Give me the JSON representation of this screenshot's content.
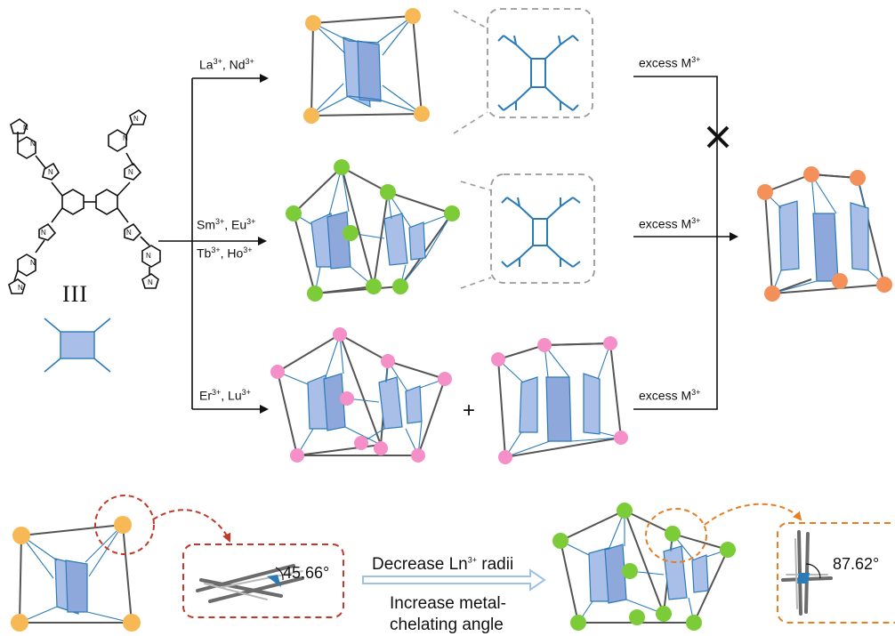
{
  "ligand": {
    "label": "III"
  },
  "routes": {
    "top": {
      "ion1": "La",
      "ion2": "Nd",
      "charge": "3+"
    },
    "middle": {
      "ion1": "Sm",
      "ion2": "Eu",
      "ion3": "Tb",
      "ion4": "Ho",
      "charge": "3+"
    },
    "bottom": {
      "ion1": "Er",
      "ion2": "Lu",
      "charge": "3+"
    }
  },
  "excess": {
    "text": "excess M",
    "charge": "3+"
  },
  "plus": "+",
  "angles": {
    "left": "45.66°",
    "right": "87.62°"
  },
  "trend": {
    "line1_pre": "Decrease Ln",
    "line1_charge": "3+",
    "line1_post": " radii",
    "line2": "Increase metal-",
    "line3": "chelating angle"
  },
  "colors": {
    "la_node": "#f7b955",
    "sm_node": "#7ccc3a",
    "er_node": "#f48fc8",
    "final_node": "#f4915a",
    "face_fill": "#a9bfe8",
    "face_stroke": "#2b7bb8",
    "edge": "#555555",
    "dash_grey": "#9a9a9a",
    "dash_red": "#c0392b",
    "dash_orange": "#e67e22",
    "arrow_blue": "#9cc2e5"
  }
}
